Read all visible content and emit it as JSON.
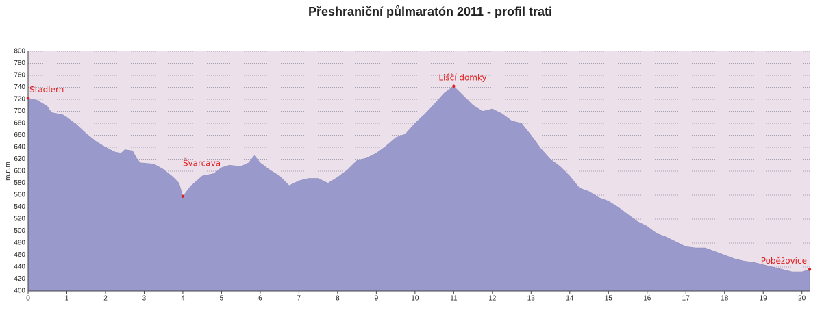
{
  "chart_data": {
    "type": "area",
    "title": "Přeshraniční půlmaratón 2011 - profil trati",
    "y_label": "m.n.m",
    "x": [
      0,
      0.25,
      0.5,
      0.6,
      0.9,
      1.0,
      1.25,
      1.5,
      1.75,
      2.0,
      2.25,
      2.4,
      2.5,
      2.7,
      2.8,
      2.9,
      3.25,
      3.5,
      3.75,
      3.9,
      4.0,
      4.2,
      4.5,
      4.8,
      5.0,
      5.2,
      5.5,
      5.7,
      5.85,
      6.0,
      6.25,
      6.5,
      6.75,
      7.0,
      7.25,
      7.5,
      7.75,
      8.0,
      8.25,
      8.5,
      8.75,
      9.0,
      9.25,
      9.5,
      9.75,
      10.0,
      10.25,
      10.5,
      10.75,
      11.0,
      11.25,
      11.5,
      11.75,
      12.0,
      12.25,
      12.5,
      12.75,
      13.0,
      13.25,
      13.5,
      13.75,
      14.0,
      14.25,
      14.5,
      14.75,
      15.0,
      15.25,
      15.5,
      15.75,
      16.0,
      16.25,
      16.5,
      16.75,
      17.0,
      17.25,
      17.5,
      17.75,
      18.0,
      18.25,
      18.5,
      18.75,
      19.0,
      19.25,
      19.5,
      19.75,
      20.0,
      20.2
    ],
    "values": [
      722,
      718,
      708,
      698,
      694,
      690,
      678,
      663,
      650,
      640,
      632,
      630,
      636,
      634,
      622,
      614,
      612,
      603,
      590,
      580,
      558,
      575,
      592,
      596,
      606,
      610,
      608,
      614,
      626,
      614,
      602,
      592,
      576,
      584,
      588,
      588,
      580,
      590,
      602,
      618,
      622,
      630,
      642,
      656,
      662,
      680,
      695,
      712,
      730,
      742,
      726,
      710,
      700,
      704,
      696,
      684,
      680,
      660,
      638,
      620,
      608,
      592,
      572,
      566,
      556,
      550,
      540,
      528,
      516,
      508,
      496,
      490,
      482,
      474,
      472,
      472,
      466,
      460,
      454,
      450,
      448,
      444,
      440,
      436,
      432,
      432,
      436
    ],
    "color": "#9999cc",
    "annotations": [
      {
        "label": "Stadlern",
        "x": 0,
        "y": 722
      },
      {
        "label": "Švarcava",
        "x": 4.0,
        "y": 558
      },
      {
        "label": "Liščí domky",
        "x": 11.0,
        "y": 742
      },
      {
        "label": "Poběžovice",
        "x": 20.2,
        "y": 436
      }
    ],
    "xlim": [
      0,
      20.2
    ],
    "xticks": [
      0,
      1,
      2,
      3,
      4,
      5,
      6,
      7,
      8,
      9,
      10,
      11,
      12,
      13,
      14,
      15,
      16,
      17,
      18,
      19,
      20
    ],
    "ylim": [
      400,
      800
    ],
    "yticks": [
      400,
      420,
      440,
      460,
      480,
      500,
      520,
      540,
      560,
      580,
      600,
      620,
      640,
      660,
      680,
      700,
      720,
      740,
      760,
      780,
      800
    ],
    "grid": true
  }
}
